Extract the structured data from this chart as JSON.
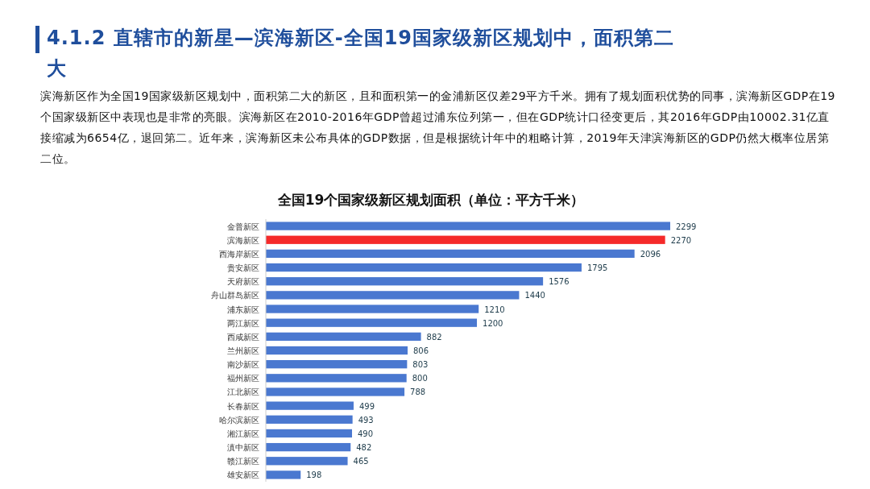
{
  "chart_data": {
    "type": "bar",
    "orientation": "horizontal",
    "title": "4.1.2 直辖市的新星—滨海新区-全国19国家级新区规划中，面积第二大",
    "subtitle": "滨海新区作为全国19国家级新区规划中，面积第二大的新区，且和面积第一的金浦新区仅差29平方千米。拥有了规划面积优势的同事，滨海新区GDP在19个国家级新区中表现也是非常的亮眼。滨海新区在2010-2016年GDP曾超过浦东位列第一，但在GDP统计口径变更后，其2016年GDP由10002.31亿直接缩减为6654亿，退回第二。近年来，滨海新区未公布具体的GDP数据，但是根据统计年中的粗略计算，2019年天津滨海新区的GDP仍然大概率位居第二位。",
    "annotations": [
      "全国19个国家级新区规划面积（单位：平方千米）"
    ],
    "categories": [
      "金普新区",
      "滨海新区",
      "西海岸新区",
      "贵安新区",
      "天府新区",
      "舟山群岛新区",
      "浦东新区",
      "两江新区",
      "西咸新区",
      "兰州新区",
      "南沙新区",
      "福州新区",
      "江北新区",
      "长春新区",
      "哈尔滨新区",
      "湘江新区",
      "滇中新区",
      "赣江新区",
      "雄安新区"
    ],
    "values": [
      2299,
      2270,
      2096,
      1795,
      1576,
      1440,
      1210,
      1200,
      882,
      806,
      803,
      800,
      788,
      499,
      493,
      490,
      482,
      465,
      198
    ],
    "colors": [
      "#4a78d0",
      "#f52a2a",
      "#4a78d0",
      "#4a78d0",
      "#4a78d0",
      "#4a78d0",
      "#4a78d0",
      "#4a78d0",
      "#4a78d0",
      "#4a78d0",
      "#4a78d0",
      "#4a78d0",
      "#4a78d0",
      "#4a78d0",
      "#4a78d0",
      "#4a78d0",
      "#4a78d0",
      "#4a78d0",
      "#4a78d0"
    ],
    "data_labels": true
  }
}
